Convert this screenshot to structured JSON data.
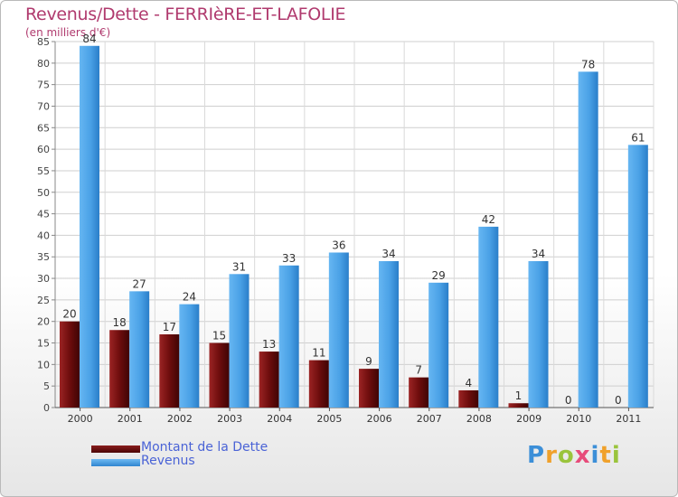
{
  "title": "Revenus/Dette - FERRIèRE-ET-LAFOLIE",
  "subtitle": "(en milliers d'€)",
  "legend": [
    {
      "label": "Montant de la Dette",
      "color": "#6b0a0a"
    },
    {
      "label": "Revenus",
      "color": "#3f97df"
    }
  ],
  "logo": {
    "text": "Proxiti"
  },
  "chart_data": {
    "type": "bar",
    "categories": [
      "2000",
      "2001",
      "2002",
      "2003",
      "2004",
      "2005",
      "2006",
      "2007",
      "2008",
      "2009",
      "2010",
      "2011"
    ],
    "series": [
      {
        "name": "Montant de la Dette",
        "color": "#6b0a0a",
        "values": [
          20,
          18,
          17,
          15,
          13,
          11,
          9,
          7,
          4,
          1,
          0,
          0
        ]
      },
      {
        "name": "Revenus",
        "color": "#3f97df",
        "values": [
          84,
          27,
          24,
          31,
          33,
          36,
          34,
          29,
          42,
          34,
          78,
          61
        ]
      }
    ],
    "yticks": [
      0,
      5,
      10,
      15,
      20,
      25,
      30,
      35,
      40,
      45,
      50,
      55,
      60,
      65,
      70,
      75,
      80,
      85
    ],
    "ylim": [
      0,
      85
    ],
    "grid": true,
    "legend_position": "bottom-left"
  }
}
